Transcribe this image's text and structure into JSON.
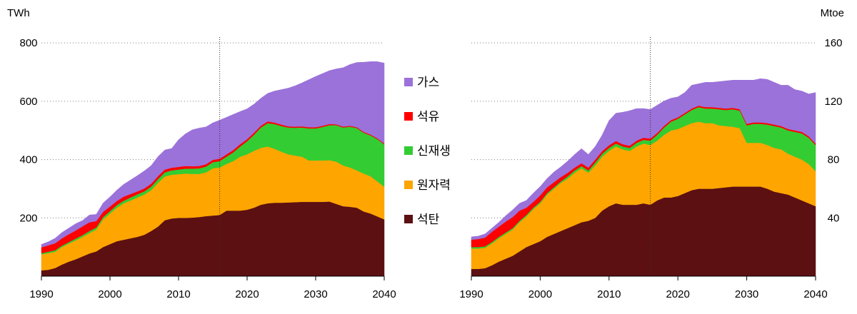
{
  "chart_data": [
    {
      "type": "area",
      "stacked": true,
      "unit": "TWh",
      "x": [
        1990,
        1991,
        1992,
        1993,
        1994,
        1995,
        1996,
        1997,
        1998,
        1999,
        2000,
        2001,
        2002,
        2003,
        2004,
        2005,
        2006,
        2007,
        2008,
        2009,
        2010,
        2011,
        2012,
        2013,
        2014,
        2015,
        2016,
        2017,
        2018,
        2019,
        2020,
        2021,
        2022,
        2023,
        2024,
        2025,
        2026,
        2027,
        2028,
        2029,
        2030,
        2031,
        2032,
        2033,
        2034,
        2035,
        2036,
        2037,
        2038,
        2039,
        2040
      ],
      "xticks": [
        "1990",
        "2000",
        "2010",
        "2020",
        "2030",
        "2040"
      ],
      "yticks": [
        "200",
        "400",
        "600",
        "800"
      ],
      "ylim": [
        0,
        820
      ],
      "reference_year": 2016,
      "series": [
        {
          "name": "석탄",
          "color": "#5c1012",
          "values": [
            20,
            22,
            28,
            40,
            50,
            58,
            68,
            78,
            85,
            100,
            110,
            120,
            125,
            130,
            135,
            142,
            155,
            170,
            192,
            198,
            200,
            200,
            201,
            203,
            206,
            208,
            210,
            225,
            225,
            225,
            228,
            235,
            245,
            250,
            252,
            252,
            253,
            254,
            255,
            255,
            255,
            255,
            256,
            248,
            240,
            238,
            235,
            222,
            215,
            205,
            195
          ]
        },
        {
          "name": "원자력",
          "color": "#ffa500",
          "values": [
            55,
            57,
            56,
            60,
            62,
            65,
            67,
            70,
            75,
            95,
            105,
            115,
            125,
            130,
            135,
            138,
            140,
            150,
            150,
            150,
            150,
            152,
            150,
            148,
            150,
            162,
            163,
            160,
            170,
            185,
            190,
            195,
            195,
            195,
            185,
            175,
            165,
            160,
            155,
            142,
            142,
            142,
            142,
            145,
            140,
            135,
            128,
            130,
            128,
            120,
            112
          ]
        },
        {
          "name": "신재생",
          "color": "#33cc33",
          "values": [
            4,
            5,
            5,
            5,
            5,
            6,
            6,
            7,
            7,
            8,
            8,
            9,
            9,
            10,
            11,
            11,
            12,
            13,
            14,
            15,
            16,
            17,
            18,
            19,
            20,
            21,
            22,
            25,
            30,
            35,
            45,
            55,
            70,
            80,
            85,
            88,
            92,
            95,
            100,
            110,
            110,
            115,
            120,
            125,
            130,
            140,
            145,
            140,
            140,
            145,
            145
          ]
        },
        {
          "name": "석유",
          "color": "#ff0000",
          "values": [
            20,
            22,
            24,
            25,
            27,
            28,
            30,
            30,
            22,
            18,
            16,
            14,
            14,
            12,
            10,
            10,
            10,
            10,
            10,
            9,
            9,
            9,
            8,
            8,
            8,
            8,
            8,
            8,
            8,
            8,
            7,
            7,
            6,
            6,
            5,
            5,
            4,
            4,
            4,
            4,
            4,
            4,
            4,
            3,
            3,
            3,
            3,
            3,
            3,
            3,
            3
          ]
        },
        {
          "name": "가스",
          "color": "#9b72d9",
          "values": [
            10,
            12,
            17,
            20,
            21,
            23,
            20,
            25,
            23,
            30,
            33,
            37,
            42,
            48,
            54,
            60,
            62,
            67,
            67,
            66,
            93,
            110,
            125,
            130,
            128,
            127,
            132,
            127,
            122,
            112,
            104,
            98,
            94,
            96,
            108,
            120,
            131,
            140,
            149,
            163,
            174,
            179,
            183,
            190,
            202,
            210,
            222,
            239,
            250,
            263,
            276
          ]
        }
      ]
    },
    {
      "type": "area",
      "stacked": true,
      "unit": "Mtoe",
      "x": [
        1990,
        1991,
        1992,
        1993,
        1994,
        1995,
        1996,
        1997,
        1998,
        1999,
        2000,
        2001,
        2002,
        2003,
        2004,
        2005,
        2006,
        2007,
        2008,
        2009,
        2010,
        2011,
        2012,
        2013,
        2014,
        2015,
        2016,
        2017,
        2018,
        2019,
        2020,
        2021,
        2022,
        2023,
        2024,
        2025,
        2026,
        2027,
        2028,
        2029,
        2030,
        2031,
        2032,
        2033,
        2034,
        2035,
        2036,
        2037,
        2038,
        2039,
        2040
      ],
      "xticks": [
        "1990",
        "2000",
        "2010",
        "2020",
        "2030",
        "2040"
      ],
      "yticks": [
        "40",
        "80",
        "120",
        "160"
      ],
      "ylim": [
        0,
        164
      ],
      "reference_year": 2016,
      "series": [
        {
          "name": "석탄",
          "color": "#5c1012",
          "values": [
            5,
            5,
            5.5,
            7.5,
            10,
            12,
            14,
            17,
            20,
            22,
            24,
            27,
            29,
            31,
            33,
            35,
            37,
            38,
            40,
            45,
            48,
            50,
            49,
            49,
            49,
            50,
            49,
            52,
            54,
            54,
            55,
            57,
            59,
            60,
            60,
            60,
            60.5,
            61,
            61.5,
            61.5,
            61.5,
            61.5,
            61.5,
            60,
            58,
            57,
            56,
            54,
            52,
            50,
            48
          ]
        },
        {
          "name": "원자력",
          "color": "#ffa500",
          "values": [
            14,
            14,
            14,
            15,
            16,
            17,
            18,
            20,
            21,
            24,
            26,
            29,
            31,
            33,
            34,
            36,
            37,
            33,
            36,
            37,
            38,
            39,
            38,
            37,
            40,
            41,
            41,
            41,
            43,
            46,
            46,
            46,
            46,
            46,
            45,
            45,
            43,
            42,
            41,
            40,
            30,
            30,
            30,
            30,
            30,
            30,
            28,
            28,
            28,
            27,
            24
          ]
        },
        {
          "name": "신재생",
          "color": "#33cc33",
          "values": [
            1,
            1,
            1,
            1,
            1,
            1,
            1,
            1,
            1,
            1,
            1,
            1,
            1,
            1,
            1.5,
            1.5,
            1.5,
            1.5,
            2,
            2,
            2,
            2,
            2,
            2,
            2.5,
            2.5,
            3,
            4,
            5,
            6,
            7,
            8,
            9,
            10,
            10,
            10,
            11,
            11,
            12,
            12,
            12,
            13,
            13,
            14,
            15,
            15,
            16,
            17,
            18,
            18,
            18
          ]
        },
        {
          "name": "석유",
          "color": "#ff0000",
          "values": [
            5,
            5.5,
            6,
            7,
            7,
            7.5,
            7.5,
            7,
            5,
            4,
            4.5,
            4,
            3.5,
            3,
            2.5,
            2,
            2,
            2,
            2,
            1.8,
            1.8,
            1.8,
            1.5,
            1.5,
            1.5,
            1.5,
            1.4,
            1.3,
            1.2,
            1.1,
            1,
            1,
            1,
            1,
            1,
            1,
            1,
            1,
            1,
            1,
            1,
            1,
            1,
            1,
            1,
            1,
            1,
            1,
            1,
            1,
            1
          ]
        },
        {
          "name": "가스",
          "color": "#9b72d9",
          "values": [
            2,
            2,
            2.5,
            2.5,
            3,
            4,
            5,
            5,
            5,
            6,
            6,
            6,
            7,
            7,
            8,
            9,
            10,
            9,
            9,
            11,
            17,
            19,
            22,
            24,
            22,
            20,
            20,
            19,
            17,
            15,
            14,
            14,
            16,
            15,
            17,
            17,
            18,
            19,
            19,
            20,
            30,
            29,
            30,
            30,
            29,
            28,
            30,
            28,
            28,
            29,
            35
          ]
        }
      ]
    }
  ]
}
